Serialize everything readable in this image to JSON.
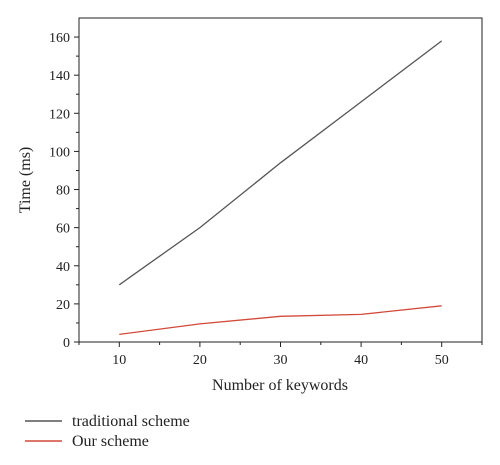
{
  "chart_data": {
    "type": "line",
    "title": "",
    "xlabel": "Number of keywords",
    "ylabel": "Time (ms)",
    "xlim": [
      5,
      55
    ],
    "ylim": [
      0,
      170
    ],
    "x_ticks": [
      10,
      20,
      30,
      40,
      50
    ],
    "y_ticks": [
      0,
      20,
      40,
      60,
      80,
      100,
      120,
      140,
      160
    ],
    "grid": false,
    "legend_placement": "bottom-left",
    "series": [
      {
        "name": "traditional scheme",
        "color": "#555555",
        "x": [
          10,
          20,
          30,
          40,
          50
        ],
        "values": [
          30,
          60,
          94,
          126,
          158
        ]
      },
      {
        "name": "Our scheme",
        "color": "#d24a3a",
        "x": [
          10,
          20,
          30,
          40,
          50
        ],
        "values": [
          4,
          9.5,
          13.5,
          14.5,
          19
        ]
      }
    ]
  }
}
